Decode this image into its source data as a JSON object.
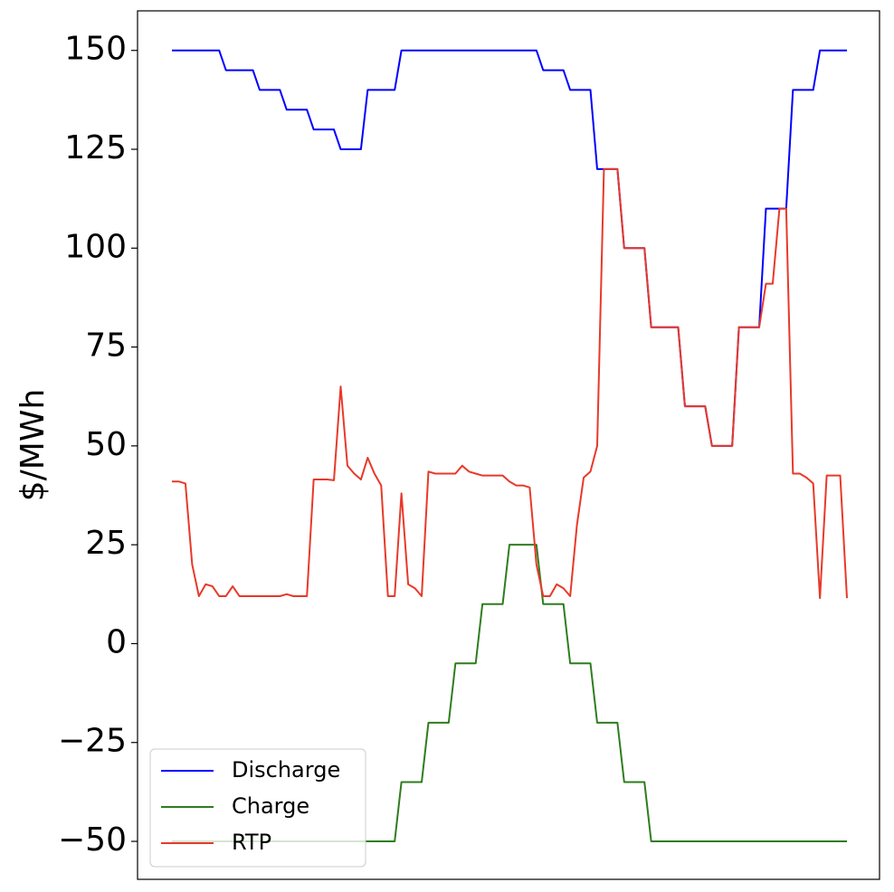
{
  "chart_data": {
    "type": "line",
    "ylabel": "$/MWh",
    "ylim": [
      -59.6,
      160
    ],
    "yticks": [
      {
        "value": -50,
        "label": "−50"
      },
      {
        "value": -25,
        "label": "−25"
      },
      0,
      25,
      50,
      75,
      100,
      125,
      150
    ],
    "grid": false,
    "legend": "lower left",
    "series": [
      {
        "name": "Discharge",
        "color": "#0000ff",
        "values": [
          150,
          150,
          150,
          150,
          150,
          150,
          150,
          150,
          145,
          145,
          145,
          145,
          145,
          140,
          140,
          140,
          140,
          135,
          135,
          135,
          135,
          130,
          130,
          130,
          130,
          125,
          125,
          125,
          125,
          140,
          140,
          140,
          140,
          140,
          150,
          150,
          150,
          150,
          150,
          150,
          150,
          150,
          150,
          150,
          150,
          150,
          150,
          150,
          150,
          150,
          150,
          150,
          150,
          150,
          150,
          145,
          145,
          145,
          145,
          140,
          140,
          140,
          140,
          120,
          120,
          120,
          120,
          100,
          100,
          100,
          100,
          80,
          80,
          80,
          80,
          80,
          60,
          60,
          60,
          60,
          50,
          50,
          50,
          50,
          80,
          80,
          80,
          80,
          110,
          110,
          110,
          110,
          140,
          140,
          140,
          140,
          150,
          150,
          150,
          150,
          150
        ]
      },
      {
        "name": "Charge",
        "color": "#2e7d1e",
        "values": [
          -50,
          -50,
          -50,
          -50,
          -50,
          -50,
          -50,
          -50,
          -50,
          -50,
          -50,
          -50,
          -50,
          -50,
          -50,
          -50,
          -50,
          -50,
          -50,
          -50,
          -50,
          -50,
          -50,
          -50,
          -50,
          -50,
          -50,
          -50,
          -50,
          -50,
          -50,
          -50,
          -50,
          -50,
          -35,
          -35,
          -35,
          -35,
          -20,
          -20,
          -20,
          -20,
          -5,
          -5,
          -5,
          -5,
          10,
          10,
          10,
          10,
          25,
          25,
          25,
          25,
          25,
          10,
          10,
          10,
          10,
          -5,
          -5,
          -5,
          -5,
          -20,
          -20,
          -20,
          -20,
          -35,
          -35,
          -35,
          -35,
          -50,
          -50,
          -50,
          -50,
          -50,
          -50,
          -50,
          -50,
          -50,
          -50,
          -50,
          -50,
          -50,
          -50,
          -50,
          -50,
          -50,
          -50,
          -50,
          -50,
          -50,
          -50,
          -50,
          -50,
          -50,
          -50,
          -50,
          -50,
          -50,
          -50
        ]
      },
      {
        "name": "RTP",
        "color": "#e8392a",
        "values": [
          41,
          41,
          40.5,
          20,
          12,
          15,
          14.5,
          12,
          12,
          14.5,
          12,
          12,
          12,
          12,
          12,
          12,
          12,
          12.5,
          12,
          12,
          12,
          41.5,
          41.5,
          41.5,
          41.3,
          65,
          45,
          43,
          41.5,
          47,
          43,
          40,
          12,
          12,
          38,
          15,
          14,
          12,
          43.5,
          43,
          43,
          43,
          43,
          45,
          43.5,
          43,
          42.5,
          42.5,
          42.5,
          42.5,
          41,
          40,
          40,
          39.5,
          20,
          12,
          12,
          15,
          14,
          12,
          30,
          42,
          43.5,
          50,
          120,
          120,
          120,
          100,
          100,
          100,
          100,
          80,
          80,
          80,
          80,
          80,
          60,
          60,
          60,
          60,
          50,
          50,
          50,
          50,
          80,
          80,
          80,
          80,
          91,
          91,
          110,
          110,
          43,
          43,
          42,
          40.5,
          11.5,
          42.5,
          42.5,
          42.5,
          11.5
        ]
      }
    ]
  }
}
